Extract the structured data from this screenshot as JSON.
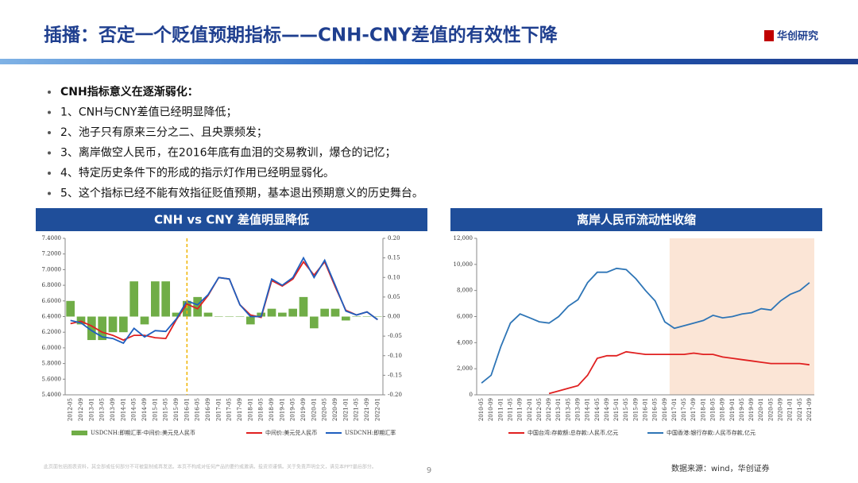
{
  "header": {
    "title": "插播：否定一个贬值预期指标——CNH-CNY差值的有效性下降",
    "logo": "华创研究"
  },
  "bullets": [
    "CNH指标意义在逐渐弱化：",
    "1、CNH与CNY差值已经明显降低；",
    "2、池子只有原来三分之二、且央票频发；",
    "3、离岸做空人民币，在2016年底有血泪的交易教训，爆仓的记忆；",
    "4、特定历史条件下的形成的指示灯作用已经明显弱化。",
    "5、这个指标已经不能有效指征贬值预期，基本退出预期意义的历史舞台。"
  ],
  "chart_data": [
    {
      "type": "combo",
      "title": "CNH vs CNY 差值明显降低",
      "categories": [
        "2012-05",
        "2012-09",
        "2013-01",
        "2013-05",
        "2013-09",
        "2014-01",
        "2014-05",
        "2014-09",
        "2015-01",
        "2015-05",
        "2015-09",
        "2016-01",
        "2016-05",
        "2016-09",
        "2017-01",
        "2017-05",
        "2017-09",
        "2018-01",
        "2018-05",
        "2018-09",
        "2019-01",
        "2019-05",
        "2019-09",
        "2020-01",
        "2020-05",
        "2020-09",
        "2021-01",
        "2021-05",
        "2021-09",
        "2022-01"
      ],
      "marker_x": "2016-01",
      "ylim": [
        5.4,
        7.4
      ],
      "yticks": [
        {
          "value": 5.4,
          "label": "5.4000"
        },
        {
          "value": 5.6,
          "label": "5.6000"
        },
        {
          "value": 5.8,
          "label": "5.8000"
        },
        {
          "value": 6.0,
          "label": "6.0000"
        },
        {
          "value": 6.2,
          "label": "6.2000"
        },
        {
          "value": 6.4,
          "label": "6.4000"
        },
        {
          "value": 6.6,
          "label": "6.6000"
        },
        {
          "value": 6.8,
          "label": "6.8000"
        },
        {
          "value": 7.0,
          "label": "7.0000"
        },
        {
          "value": 7.2,
          "label": "7.2000"
        },
        {
          "value": 7.4,
          "label": "7.4000"
        }
      ],
      "y2lim": [
        -0.2,
        0.2
      ],
      "y2ticks": [
        {
          "value": -0.2,
          "label": "-0.20"
        },
        {
          "value": -0.15,
          "label": "-0.15"
        },
        {
          "value": -0.1,
          "label": "-0.10"
        },
        {
          "value": -0.05,
          "label": "-0.05"
        },
        {
          "value": 0,
          "label": "0.00"
        },
        {
          "value": 0.05,
          "label": "0.05"
        },
        {
          "value": 0.1,
          "label": "0.10"
        },
        {
          "value": 0.15,
          "label": "0.15"
        },
        {
          "value": 0.2,
          "label": "0.20"
        }
      ],
      "series": [
        {
          "name": "USDCNH:即期汇率-中间价:美元兑人民币",
          "type": "bar",
          "axis": "y2",
          "color": "#70ad47",
          "values": [
            0.04,
            -0.02,
            -0.06,
            -0.06,
            -0.04,
            -0.04,
            0.09,
            -0.02,
            0.09,
            0.09,
            0.01,
            0.04,
            0.05,
            0.01,
            0.0,
            0.0,
            0.0,
            -0.02,
            0.01,
            0.02,
            0.01,
            0.02,
            0.05,
            -0.03,
            0.02,
            0.02,
            -0.01,
            0.0,
            0.0,
            0.0
          ]
        },
        {
          "name": "中间价:美元兑人民币",
          "type": "line",
          "color": "#e02020",
          "values": [
            6.31,
            6.34,
            6.28,
            6.2,
            6.16,
            6.1,
            6.16,
            6.16,
            6.13,
            6.12,
            6.36,
            6.56,
            6.5,
            6.67,
            6.9,
            6.88,
            6.55,
            6.42,
            6.39,
            6.86,
            6.79,
            6.88,
            7.1,
            6.93,
            7.1,
            6.78,
            6.48,
            6.42,
            6.46,
            6.36
          ]
        },
        {
          "name": "USDCNH:即期汇率",
          "type": "line",
          "color": "#1f5fbf",
          "values": [
            6.35,
            6.32,
            6.22,
            6.14,
            6.12,
            6.06,
            6.25,
            6.14,
            6.22,
            6.21,
            6.37,
            6.6,
            6.55,
            6.68,
            6.9,
            6.88,
            6.55,
            6.4,
            6.4,
            6.88,
            6.8,
            6.9,
            7.15,
            6.9,
            7.12,
            6.8,
            6.47,
            6.42,
            6.46,
            6.36
          ]
        }
      ]
    },
    {
      "type": "line",
      "title": "离岸人民币流动性收缩",
      "categories": [
        "2010-05",
        "2010-09",
        "2011-01",
        "2011-05",
        "2011-09",
        "2012-01",
        "2012-05",
        "2012-09",
        "2013-01",
        "2013-05",
        "2013-09",
        "2014-01",
        "2014-05",
        "2014-09",
        "2015-01",
        "2015-05",
        "2015-09",
        "2016-01",
        "2016-05",
        "2016-09",
        "2017-01",
        "2017-05",
        "2017-09",
        "2018-01",
        "2018-05",
        "2018-09",
        "2019-01",
        "2019-05",
        "2019-09",
        "2020-01",
        "2020-05",
        "2020-09",
        "2021-01",
        "2021-05",
        "2021-09"
      ],
      "shade_from": "2017-01",
      "shade_color": "#fbe5d6",
      "ylim": [
        0,
        12000
      ],
      "yticks": [
        0,
        {
          "value": 2000,
          "label": "2,000"
        },
        {
          "value": 4000,
          "label": "4,000"
        },
        {
          "value": 6000,
          "label": "6,000"
        },
        {
          "value": 8000,
          "label": "8,000"
        },
        {
          "value": 10000,
          "label": "10,000"
        },
        {
          "value": 12000,
          "label": "12,000"
        }
      ],
      "series": [
        {
          "name": "中国台湾:存款额:总存款:人民币,亿元",
          "color": "#e02020",
          "values": [
            null,
            null,
            null,
            null,
            null,
            null,
            null,
            100,
            300,
            500,
            700,
            1500,
            2800,
            3000,
            3000,
            3300,
            3200,
            3100,
            3100,
            3100,
            3100,
            3100,
            3200,
            3100,
            3100,
            2900,
            2800,
            2700,
            2600,
            2500,
            2400,
            2400,
            2400,
            2400,
            2300
          ]
        },
        {
          "name": "中国香港:银行存款:人民币存款,亿元",
          "color": "#2e75b6",
          "values": [
            900,
            1500,
            3700,
            5500,
            6200,
            5900,
            5600,
            5500,
            6000,
            6800,
            7300,
            8600,
            9400,
            9400,
            9700,
            9600,
            8900,
            8000,
            7200,
            5600,
            5100,
            5300,
            5500,
            5700,
            6100,
            5900,
            6000,
            6200,
            6300,
            6600,
            6500,
            7200,
            7700,
            8000,
            8600
          ]
        }
      ]
    }
  ],
  "footer": {
    "disclaimer": "此页面包括图表资料，其全部或任何部分不可被复制或再发送。本页不构成对任何产品的要约或邀请。投资须谨慎。关于免责声明全文，请见本PPT最后部分。",
    "page": "9",
    "source": "数据来源：wind，华创证券"
  }
}
